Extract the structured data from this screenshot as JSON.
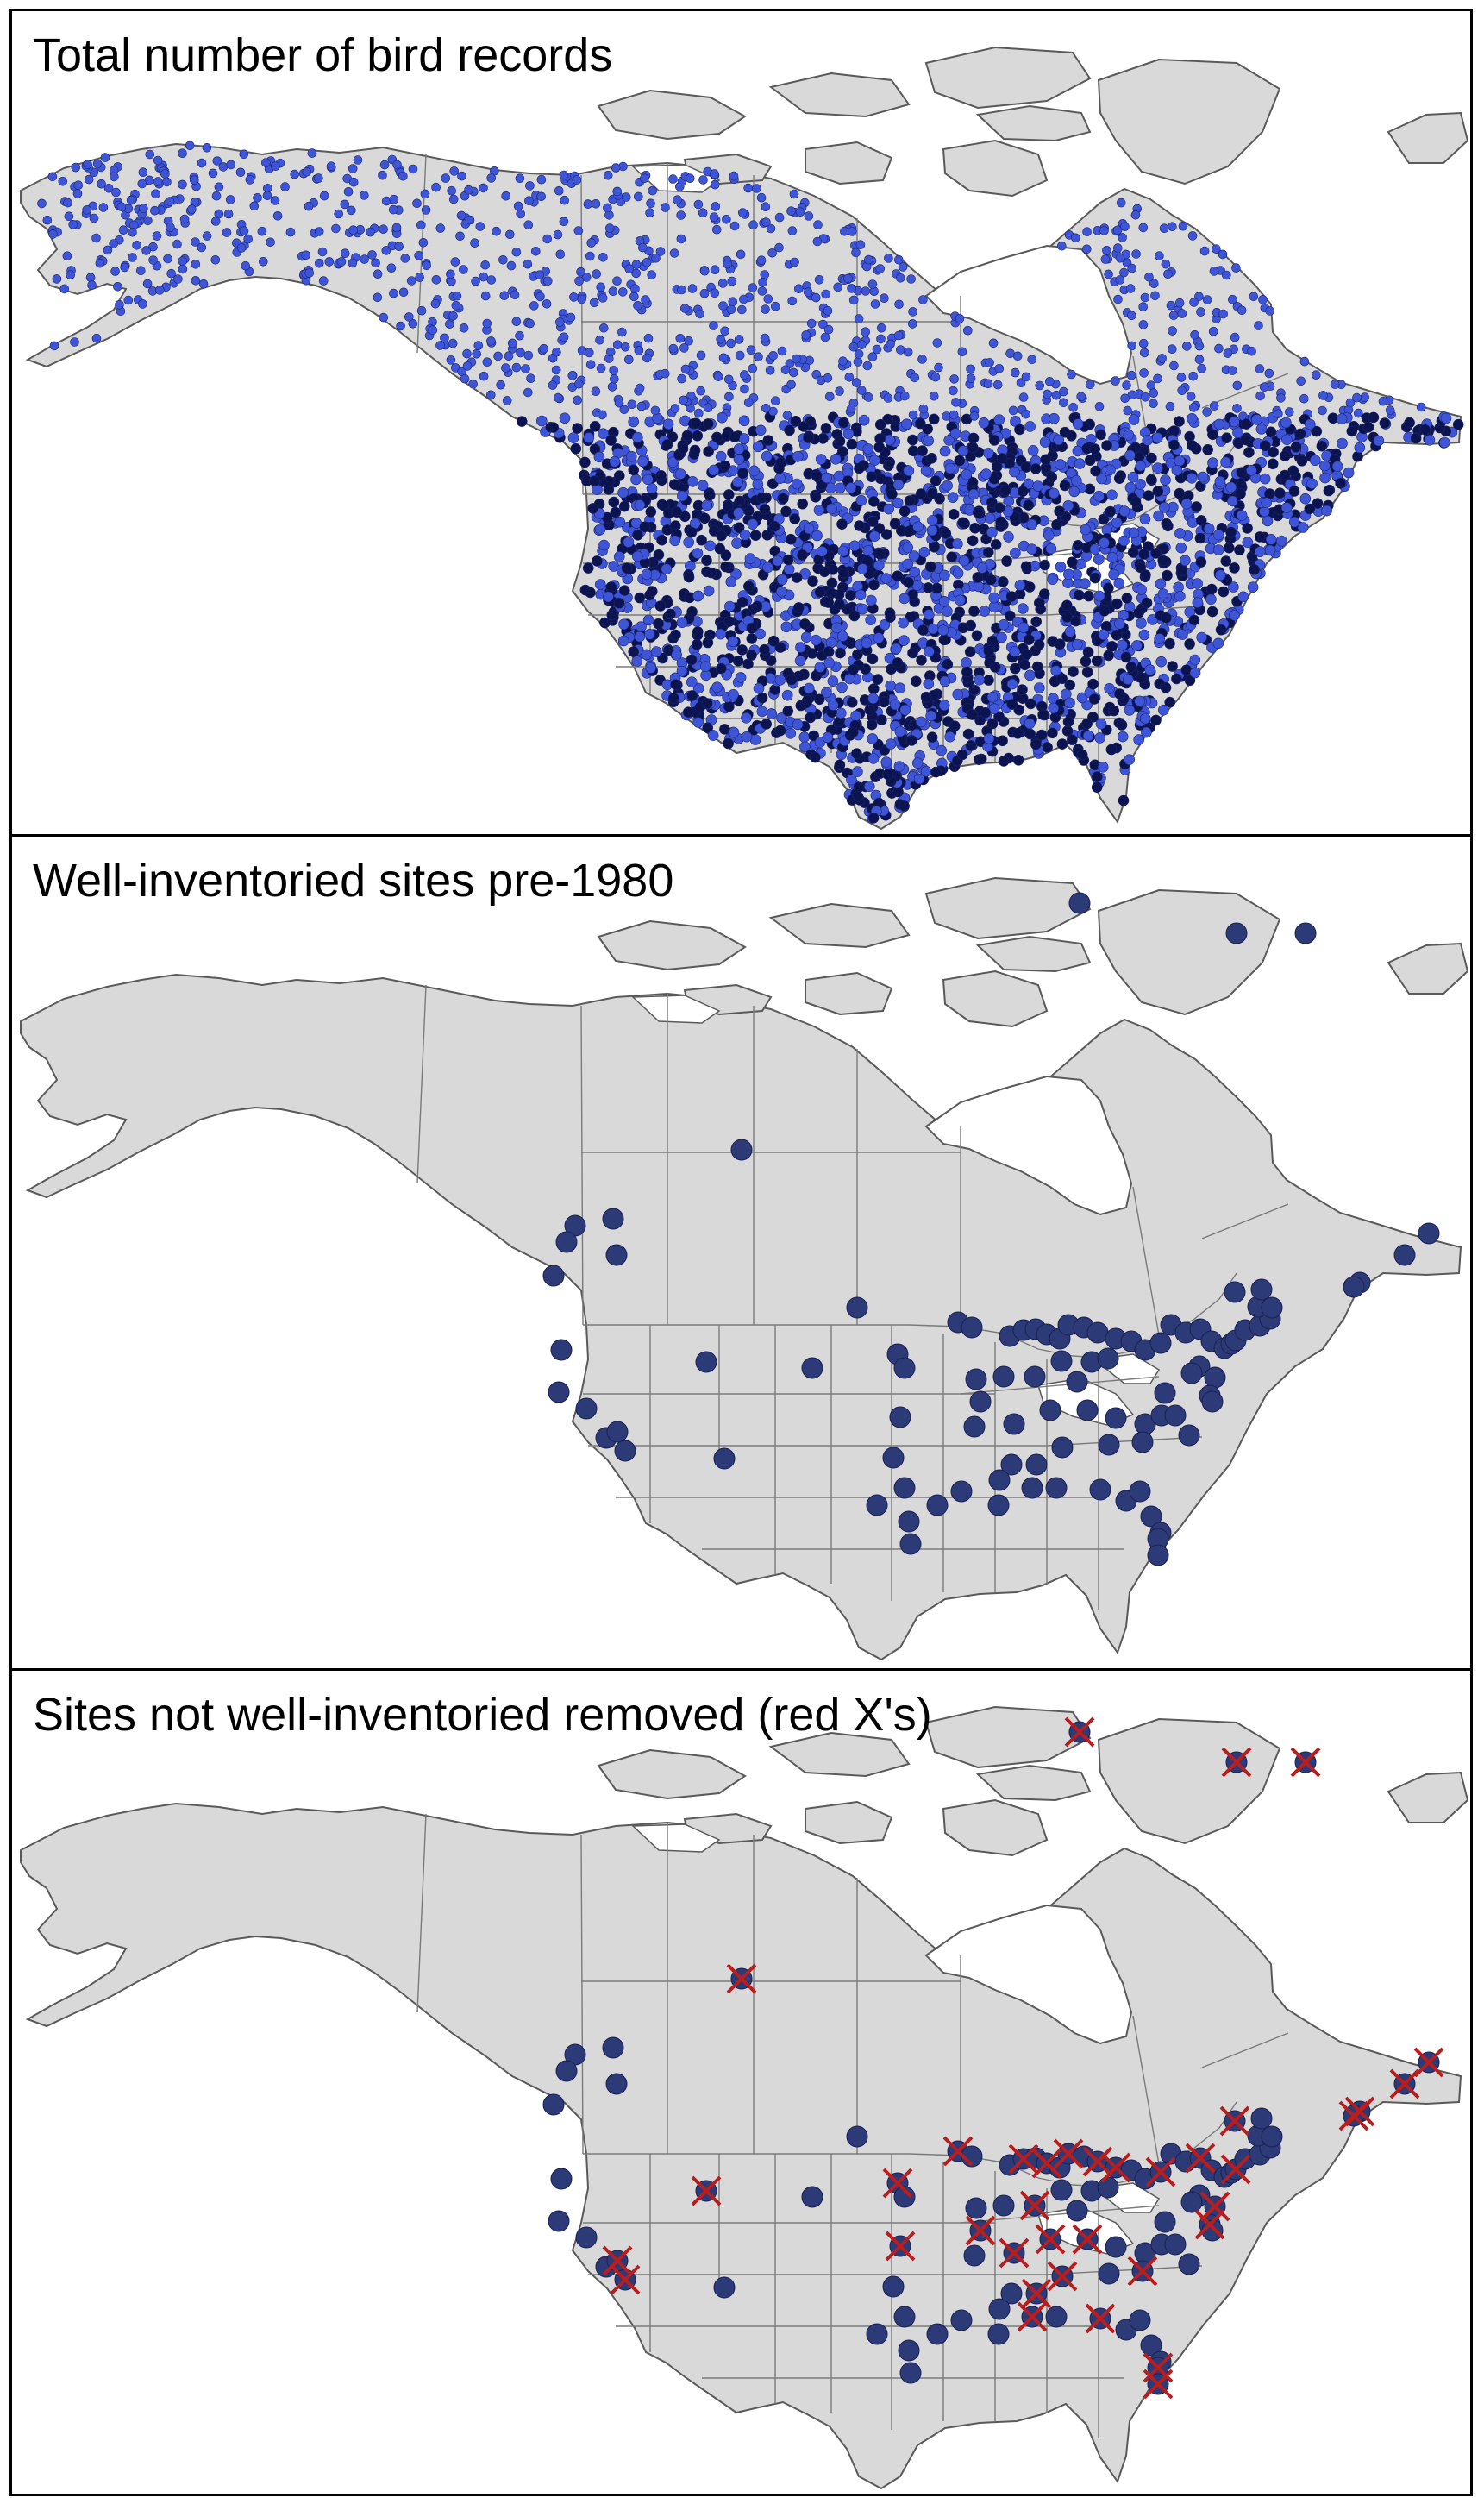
{
  "panels": [
    {
      "id": "total",
      "title": "Total number of bird records"
    },
    {
      "id": "pre1980",
      "title": "Well-inventoried sites pre-1980"
    },
    {
      "id": "removed",
      "title": "Sites not well-inventoried removed (red X's)"
    }
  ],
  "colors": {
    "land": "#d9d9d9",
    "border": "#5a5a5a",
    "record_dot": "#3f55d8",
    "record_dot_dark": "#0c1450",
    "site_dot": "#2d3a78",
    "removed_x": "#b81e1e"
  },
  "sites": [
    [
      -82.0,
      72.5
    ],
    [
      -68.5,
      70.3
    ],
    [
      -62.5,
      70.3
    ],
    [
      -110.5,
      54.8
    ],
    [
      -122.8,
      49.4
    ],
    [
      -120.0,
      49.9
    ],
    [
      -123.3,
      48.2
    ],
    [
      -119.4,
      47.3
    ],
    [
      -123.9,
      45.8
    ],
    [
      -57.8,
      48.8
    ],
    [
      -60.0,
      47.3
    ],
    [
      -63.8,
      45.3
    ],
    [
      -64.3,
      45.0
    ],
    [
      -122.5,
      40.5
    ],
    [
      -122.3,
      37.5
    ],
    [
      -120.2,
      36.3
    ],
    [
      -118.5,
      34.2
    ],
    [
      -117.1,
      33.3
    ],
    [
      -117.8,
      34.6
    ],
    [
      -112.0,
      39.6
    ],
    [
      -104.3,
      39.2
    ],
    [
      -110.2,
      32.7
    ],
    [
      -98.2,
      40.2
    ],
    [
      -101.2,
      43.5
    ],
    [
      -97.7,
      39.2
    ],
    [
      -98.0,
      35.7
    ],
    [
      -98.5,
      32.8
    ],
    [
      -99.6,
      29.4
    ],
    [
      -97.7,
      30.6
    ],
    [
      -97.4,
      28.2
    ],
    [
      -95.5,
      29.4
    ],
    [
      -97.3,
      26.6
    ],
    [
      -93.8,
      42.5
    ],
    [
      -92.8,
      42.1
    ],
    [
      -90.0,
      41.5
    ],
    [
      -89.0,
      41.9
    ],
    [
      -88.1,
      42.0
    ],
    [
      -87.3,
      41.6
    ],
    [
      -86.4,
      41.3
    ],
    [
      -85.7,
      42.3
    ],
    [
      -84.6,
      42.1
    ],
    [
      -83.6,
      41.7
    ],
    [
      -82.3,
      41.3
    ],
    [
      -81.2,
      41.1
    ],
    [
      -80.3,
      40.5
    ],
    [
      -79.1,
      41.0
    ],
    [
      -78.2,
      42.3
    ],
    [
      -77.2,
      41.7
    ],
    [
      -76.1,
      42.0
    ],
    [
      -75.4,
      41.1
    ],
    [
      -74.5,
      40.6
    ],
    [
      -74.0,
      40.9
    ],
    [
      -73.6,
      41.2
    ],
    [
      -72.8,
      41.9
    ],
    [
      -71.7,
      42.2
    ],
    [
      -70.9,
      42.7
    ],
    [
      -71.6,
      43.6
    ],
    [
      -70.6,
      43.5
    ],
    [
      -73.2,
      44.6
    ],
    [
      -71.2,
      44.8
    ],
    [
      -76.5,
      39.3
    ],
    [
      -77.1,
      38.8
    ],
    [
      -75.5,
      38.5
    ],
    [
      -76.0,
      37.2
    ],
    [
      -75.9,
      36.8
    ],
    [
      -79.2,
      37.4
    ],
    [
      -86.4,
      39.7
    ],
    [
      -84.2,
      39.6
    ],
    [
      -85.4,
      38.2
    ],
    [
      -83.0,
      39.9
    ],
    [
      -88.4,
      38.6
    ],
    [
      -90.6,
      38.6
    ],
    [
      -92.6,
      38.4
    ],
    [
      -92.3,
      36.8
    ],
    [
      -92.8,
      35.0
    ],
    [
      -90.0,
      35.2
    ],
    [
      -87.4,
      36.2
    ],
    [
      -84.8,
      36.2
    ],
    [
      -82.8,
      35.6
    ],
    [
      -80.8,
      35.2
    ],
    [
      -79.6,
      35.8
    ],
    [
      -78.6,
      35.8
    ],
    [
      -77.8,
      34.4
    ],
    [
      -81.1,
      33.9
    ],
    [
      -83.5,
      33.7
    ],
    [
      -86.7,
      33.5
    ],
    [
      -88.6,
      32.3
    ],
    [
      -90.3,
      32.3
    ],
    [
      -91.2,
      31.2
    ],
    [
      -89.0,
      30.6
    ],
    [
      -87.3,
      30.6
    ],
    [
      -84.3,
      30.5
    ],
    [
      -82.6,
      29.7
    ],
    [
      -81.6,
      30.4
    ],
    [
      -81.0,
      28.6
    ],
    [
      -80.5,
      27.4
    ],
    [
      -80.7,
      27.0
    ],
    [
      -80.8,
      25.8
    ],
    [
      -91.3,
      29.4
    ],
    [
      -93.8,
      30.4
    ]
  ],
  "removed_sites": [
    [
      -82.0,
      72.5
    ],
    [
      -68.5,
      70.3
    ],
    [
      -62.5,
      70.3
    ],
    [
      -110.5,
      54.8
    ],
    [
      -57.8,
      48.8
    ],
    [
      -60.0,
      47.3
    ],
    [
      -63.8,
      45.3
    ],
    [
      -64.3,
      45.0
    ],
    [
      -112.0,
      39.6
    ],
    [
      -117.1,
      33.3
    ],
    [
      -117.8,
      34.6
    ],
    [
      -98.2,
      40.2
    ],
    [
      -98.0,
      35.7
    ],
    [
      -93.8,
      42.5
    ],
    [
      -89.0,
      41.9
    ],
    [
      -87.3,
      41.6
    ],
    [
      -85.7,
      42.3
    ],
    [
      -83.6,
      41.7
    ],
    [
      -82.3,
      41.3
    ],
    [
      -79.1,
      41.0
    ],
    [
      -76.1,
      42.0
    ],
    [
      -73.6,
      41.2
    ],
    [
      -75.5,
      38.5
    ],
    [
      -76.0,
      37.2
    ],
    [
      -73.2,
      44.6
    ],
    [
      -88.4,
      38.6
    ],
    [
      -92.3,
      36.8
    ],
    [
      -90.0,
      35.2
    ],
    [
      -87.4,
      36.2
    ],
    [
      -84.8,
      36.2
    ],
    [
      -81.1,
      33.9
    ],
    [
      -86.7,
      33.5
    ],
    [
      -88.6,
      32.3
    ],
    [
      -89.0,
      30.6
    ],
    [
      -84.3,
      30.5
    ],
    [
      -80.8,
      25.8
    ],
    [
      -80.7,
      27.0
    ]
  ]
}
